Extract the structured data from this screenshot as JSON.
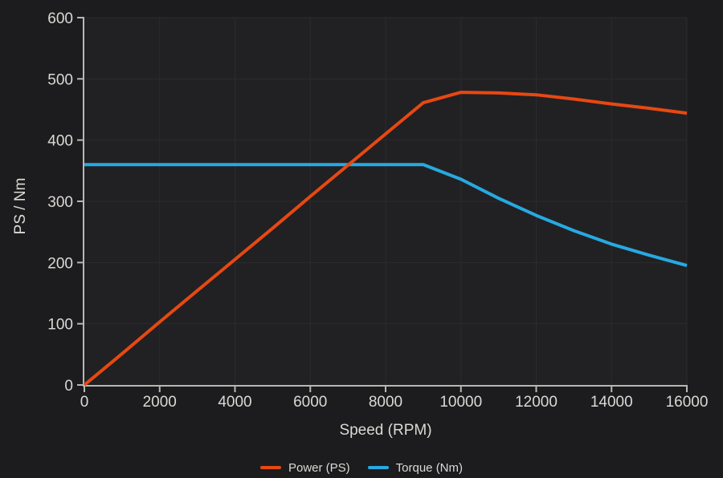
{
  "colors": {
    "background": "#1c1c1e",
    "plot_background": "#212123",
    "grid": "#2b2b2d",
    "axis": "#b9b7b4",
    "tick_text": "#dcd9d4",
    "power": "#e84812",
    "torque": "#27a9e1"
  },
  "chart_data": {
    "type": "line",
    "title": "",
    "x": [
      0,
      1000,
      2000,
      3000,
      4000,
      5000,
      6000,
      7000,
      8000,
      9000,
      10000,
      11000,
      12000,
      13000,
      14000,
      15000,
      16000
    ],
    "series": [
      {
        "name": "Power (PS)",
        "color": "#e84812",
        "values": [
          0,
          51,
          103,
          154,
          205,
          256,
          308,
          359,
          410,
          461,
          478,
          477,
          474,
          467,
          459,
          452,
          444
        ]
      },
      {
        "name": "Torque (Nm)",
        "color": "#27a9e1",
        "values": [
          360,
          360,
          360,
          360,
          360,
          360,
          360,
          360,
          360,
          360,
          336,
          305,
          277,
          252,
          230,
          212,
          195
        ]
      }
    ],
    "xlabel": "Speed (RPM)",
    "ylabel": "PS / Nm",
    "xlim": [
      0,
      16000
    ],
    "ylim": [
      0,
      600
    ],
    "x_ticks": [
      0,
      2000,
      4000,
      6000,
      8000,
      10000,
      12000,
      14000,
      16000
    ],
    "x_tick_labels": [
      "0",
      "2000",
      "4000",
      "6000",
      "8000",
      "10000",
      "12000",
      "14000",
      "16000"
    ],
    "y_ticks": [
      0,
      100,
      200,
      300,
      400,
      500,
      600
    ],
    "y_tick_labels": [
      "0",
      "100",
      "200",
      "300",
      "400",
      "500",
      "600"
    ],
    "grid": true,
    "legend_position": "bottom"
  }
}
